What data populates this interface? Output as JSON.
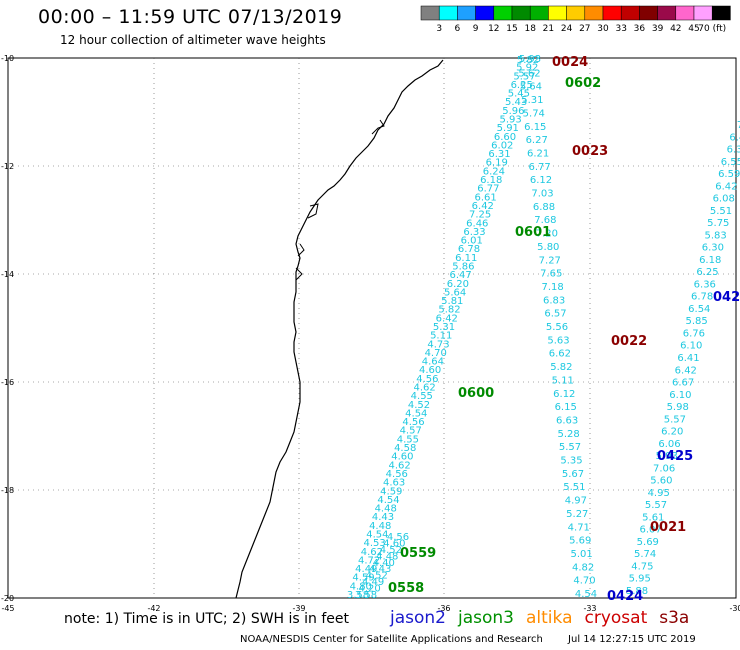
{
  "header": {
    "title": "00:00 – 11:59 UTC 07/13/2019",
    "subtitle": "12 hour collection of altimeter wave heights"
  },
  "colorbar": {
    "ticks": [
      "3",
      "6",
      "9",
      "12",
      "15",
      "18",
      "21",
      "24",
      "27",
      "30",
      "33",
      "36",
      "39",
      "42",
      "45",
      "70 (ft)"
    ],
    "colors": [
      "#808080",
      "#00ffff",
      "#1ea0ff",
      "#0000ff",
      "#00d000",
      "#008a00",
      "#00b000",
      "#ffff00",
      "#ffcc00",
      "#ff8c00",
      "#ff0000",
      "#c00000",
      "#800000",
      "#9a0a4a",
      "#ff66cc",
      "#ffa0ff",
      "#000000"
    ]
  },
  "map": {
    "lat_ticks": [
      "-10",
      "-12",
      "-14",
      "-16",
      "-18",
      "-20"
    ],
    "lon_ticks": [
      "-45",
      "-42",
      "-39",
      "-36",
      "-33",
      "-30"
    ]
  },
  "tracks": [
    {
      "id": "t0600",
      "color": "#1ec8e0",
      "values": [
        "3.58",
        "4.80",
        "4.59",
        "4.49",
        "4.72",
        "4.62",
        "4.53",
        "4.54",
        "4.48",
        "4.43",
        "4.48",
        "4.54",
        "4.59",
        "4.63",
        "4.56",
        "4.62",
        "4.60",
        "4.58",
        "4.55",
        "4.57",
        "4.56",
        "4.54",
        "4.52",
        "4.55",
        "4.62",
        "4.56",
        "4.60",
        "4.64",
        "4.70",
        "4.73",
        "5.11",
        "5.31",
        "6.42",
        "5.82",
        "5.81",
        "5.64",
        "6.20",
        "6.47",
        "5.86",
        "6.11",
        "6.78",
        "6.01",
        "6.33",
        "6.46",
        "7.25",
        "6.42",
        "6.61",
        "6.77",
        "6.18",
        "6.24",
        "6.19",
        "6.31",
        "6.02",
        "6.60",
        "5.91",
        "5.93",
        "5.96",
        "5.43",
        "5.45",
        "6.25",
        "5.57",
        "5.92",
        "5.93"
      ]
    },
    {
      "id": "t0558",
      "color": "#1ec8e0",
      "values": [
        "3.58",
        "4.20",
        "4.49",
        "4.52",
        "4.43",
        "4.40",
        "4.48",
        "4.52",
        "4.60",
        "4.56"
      ]
    },
    {
      "id": "t0601",
      "color": "#1ec8e0",
      "values": [
        "4.54",
        "4.70",
        "4.82",
        "5.01",
        "5.69",
        "4.71",
        "5.27",
        "4.97",
        "5.51",
        "5.67",
        "5.35",
        "5.57",
        "5.28",
        "6.63",
        "6.15",
        "6.12",
        "5.11",
        "5.82",
        "6.62",
        "5.63",
        "5.56",
        "6.57",
        "6.83",
        "7.18",
        "7.65",
        "7.27",
        "5.80",
        "7.20",
        "7.68",
        "6.88",
        "7.03",
        "6.12",
        "6.77",
        "6.21",
        "6.27",
        "6.15",
        "5.74",
        "5.31",
        "5.64",
        "5.62",
        "5.82"
      ]
    },
    {
      "id": "t0021",
      "color": "#1ec8e0",
      "values": [
        "5.88",
        "5.95",
        "4.75",
        "5.74",
        "5.69",
        "6.07",
        "5.61",
        "5.57",
        "4.95",
        "5.60",
        "7.06",
        "5.93",
        "6.06",
        "6.20",
        "5.57",
        "5.98",
        "6.10",
        "6.67",
        "6.42",
        "6.41",
        "6.10",
        "6.76",
        "5.85",
        "6.54",
        "6.78",
        "6.36",
        "6.25",
        "6.18",
        "6.30",
        "5.83",
        "5.75",
        "5.51",
        "6.08",
        "6.42",
        "6.59",
        "6.55",
        "6.3",
        "6.4",
        "7"
      ]
    }
  ],
  "pass_labels": [
    {
      "text": "0024",
      "color": "#8b0000"
    },
    {
      "text": "0602",
      "color": "#008a00"
    },
    {
      "text": "0023",
      "color": "#8b0000"
    },
    {
      "text": "0601",
      "color": "#008a00"
    },
    {
      "text": "0022",
      "color": "#8b0000"
    },
    {
      "text": "0600",
      "color": "#008a00"
    },
    {
      "text": "0425",
      "color": "#0000cc"
    },
    {
      "text": "042",
      "color": "#0000cc"
    },
    {
      "text": "0021",
      "color": "#8b0000"
    },
    {
      "text": "0559",
      "color": "#008a00"
    },
    {
      "text": "0558",
      "color": "#008a00"
    },
    {
      "text": "0424",
      "color": "#0000cc"
    }
  ],
  "footer": {
    "note": "note: 1) Time is in UTC; 2) SWH is in feet",
    "satellites": [
      {
        "name": "jason2",
        "color": "#1a1acc"
      },
      {
        "name": "jason3",
        "color": "#009000"
      },
      {
        "name": "altika",
        "color": "#ff8c00"
      },
      {
        "name": "cryosat",
        "color": "#cc0000"
      },
      {
        "name": "s3a",
        "color": "#8b0000"
      }
    ],
    "credit_org": "NOAA/NESDIS Center for Satellite Applications and Research",
    "credit_time": "Jul 14 12:27:15 UTC 2019"
  }
}
